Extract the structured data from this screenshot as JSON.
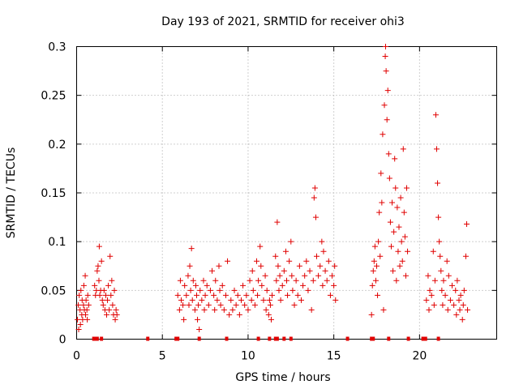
{
  "chart_data": {
    "type": "scatter",
    "title": "Day 193 of 2021, SRMTID for receiver ohi3",
    "xlabel": "GPS time / hours",
    "ylabel": "SRMTID / TECUs",
    "xlim": [
      0,
      24.5
    ],
    "ylim": [
      0,
      0.3
    ],
    "xticks": [
      0,
      5,
      10,
      15,
      20
    ],
    "xtick_labels": [
      "0",
      "5",
      "10",
      "15",
      "20"
    ],
    "yticks": [
      0,
      0.05,
      0.1,
      0.15,
      0.2,
      0.25,
      0.3
    ],
    "ytick_labels": [
      "0",
      "0.05",
      "0.1",
      "0.15",
      "0.2",
      "0.25",
      "0.3"
    ],
    "grid": true,
    "marker": "+",
    "color": "#e00000",
    "series": [
      {
        "name": "SRMTID",
        "points": [
          [
            0.05,
            0.02
          ],
          [
            0.1,
            0.035
          ],
          [
            0.12,
            0.01
          ],
          [
            0.15,
            0.045
          ],
          [
            0.2,
            0.03
          ],
          [
            0.22,
            0.015
          ],
          [
            0.25,
            0.05
          ],
          [
            0.3,
            0.025
          ],
          [
            0.32,
            0.04
          ],
          [
            0.35,
            0.02
          ],
          [
            0.4,
            0.035
          ],
          [
            0.42,
            0.055
          ],
          [
            0.45,
            0.03
          ],
          [
            0.5,
            0.065
          ],
          [
            0.52,
            0.025
          ],
          [
            0.55,
            0.04
          ],
          [
            0.6,
            0.03
          ],
          [
            0.62,
            0.02
          ],
          [
            0.65,
            0.045
          ],
          [
            0.7,
            0.035
          ],
          [
            1.05,
            0.055
          ],
          [
            1.1,
            0.045
          ],
          [
            1.15,
            0.05
          ],
          [
            1.2,
            0.07
          ],
          [
            1.25,
            0.075
          ],
          [
            1.3,
            0.06
          ],
          [
            1.32,
            0.095
          ],
          [
            1.35,
            0.045
          ],
          [
            1.4,
            0.05
          ],
          [
            1.45,
            0.08
          ],
          [
            1.5,
            0.04
          ],
          [
            1.55,
            0.035
          ],
          [
            1.6,
            0.05
          ],
          [
            1.65,
            0.03
          ],
          [
            1.7,
            0.045
          ],
          [
            1.75,
            0.025
          ],
          [
            1.8,
            0.04
          ],
          [
            1.85,
            0.055
          ],
          [
            1.9,
            0.03
          ],
          [
            1.95,
            0.085
          ],
          [
            2.0,
            0.045
          ],
          [
            2.05,
            0.06
          ],
          [
            2.1,
            0.035
          ],
          [
            2.15,
            0.025
          ],
          [
            2.2,
            0.05
          ],
          [
            2.25,
            0.02
          ],
          [
            2.3,
            0.03
          ],
          [
            2.35,
            0.025
          ],
          [
            5.9,
            0.045
          ],
          [
            6.0,
            0.03
          ],
          [
            6.05,
            0.06
          ],
          [
            6.1,
            0.04
          ],
          [
            6.2,
            0.035
          ],
          [
            6.25,
            0.02
          ],
          [
            6.3,
            0.055
          ],
          [
            6.4,
            0.045
          ],
          [
            6.5,
            0.065
          ],
          [
            6.55,
            0.035
          ],
          [
            6.6,
            0.075
          ],
          [
            6.65,
            0.05
          ],
          [
            6.7,
            0.093
          ],
          [
            6.75,
            0.04
          ],
          [
            6.8,
            0.06
          ],
          [
            6.9,
            0.03
          ],
          [
            6.95,
            0.055
          ],
          [
            7.0,
            0.045
          ],
          [
            7.05,
            0.02
          ],
          [
            7.1,
            0.035
          ],
          [
            7.15,
            0.01
          ],
          [
            7.2,
            0.05
          ],
          [
            7.3,
            0.04
          ],
          [
            7.4,
            0.06
          ],
          [
            7.45,
            0.03
          ],
          [
            7.5,
            0.045
          ],
          [
            7.6,
            0.055
          ],
          [
            7.7,
            0.035
          ],
          [
            7.8,
            0.05
          ],
          [
            7.9,
            0.07
          ],
          [
            8.0,
            0.045
          ],
          [
            8.05,
            0.03
          ],
          [
            8.1,
            0.06
          ],
          [
            8.2,
            0.04
          ],
          [
            8.3,
            0.075
          ],
          [
            8.35,
            0.05
          ],
          [
            8.4,
            0.035
          ],
          [
            8.5,
            0.055
          ],
          [
            8.6,
            0.03
          ],
          [
            8.7,
            0.045
          ],
          [
            8.8,
            0.08
          ],
          [
            8.9,
            0.025
          ],
          [
            9.0,
            0.04
          ],
          [
            9.1,
            0.03
          ],
          [
            9.2,
            0.05
          ],
          [
            9.3,
            0.035
          ],
          [
            9.4,
            0.045
          ],
          [
            9.5,
            0.025
          ],
          [
            9.6,
            0.04
          ],
          [
            9.7,
            0.055
          ],
          [
            9.8,
            0.035
          ],
          [
            9.9,
            0.045
          ],
          [
            10.0,
            0.03
          ],
          [
            10.1,
            0.06
          ],
          [
            10.2,
            0.04
          ],
          [
            10.25,
            0.07
          ],
          [
            10.3,
            0.05
          ],
          [
            10.4,
            0.035
          ],
          [
            10.5,
            0.08
          ],
          [
            10.55,
            0.045
          ],
          [
            10.6,
            0.06
          ],
          [
            10.7,
            0.095
          ],
          [
            10.75,
            0.075
          ],
          [
            10.8,
            0.055
          ],
          [
            10.9,
            0.04
          ],
          [
            11.0,
            0.065
          ],
          [
            11.05,
            0.03
          ],
          [
            11.1,
            0.05
          ],
          [
            11.2,
            0.025
          ],
          [
            11.25,
            0.04
          ],
          [
            11.3,
            0.035
          ],
          [
            11.35,
            0.02
          ],
          [
            11.4,
            0.045
          ],
          [
            11.6,
            0.085
          ],
          [
            11.65,
            0.06
          ],
          [
            11.7,
            0.12
          ],
          [
            11.75,
            0.075
          ],
          [
            11.8,
            0.05
          ],
          [
            11.85,
            0.065
          ],
          [
            11.9,
            0.04
          ],
          [
            12.0,
            0.055
          ],
          [
            12.1,
            0.07
          ],
          [
            12.2,
            0.09
          ],
          [
            12.25,
            0.06
          ],
          [
            12.3,
            0.045
          ],
          [
            12.4,
            0.08
          ],
          [
            12.5,
            0.1
          ],
          [
            12.55,
            0.065
          ],
          [
            12.6,
            0.05
          ],
          [
            12.7,
            0.035
          ],
          [
            12.8,
            0.06
          ],
          [
            12.9,
            0.045
          ],
          [
            13.0,
            0.075
          ],
          [
            13.1,
            0.04
          ],
          [
            13.2,
            0.055
          ],
          [
            13.3,
            0.065
          ],
          [
            13.4,
            0.08
          ],
          [
            13.5,
            0.05
          ],
          [
            13.6,
            0.07
          ],
          [
            13.7,
            0.03
          ],
          [
            13.8,
            0.06
          ],
          [
            13.85,
            0.145
          ],
          [
            13.9,
            0.155
          ],
          [
            13.95,
            0.125
          ],
          [
            14.0,
            0.085
          ],
          [
            14.1,
            0.065
          ],
          [
            14.2,
            0.075
          ],
          [
            14.3,
            0.1
          ],
          [
            14.35,
            0.055
          ],
          [
            14.4,
            0.09
          ],
          [
            14.5,
            0.07
          ],
          [
            14.6,
            0.06
          ],
          [
            14.7,
            0.08
          ],
          [
            14.8,
            0.045
          ],
          [
            14.9,
            0.065
          ],
          [
            15.0,
            0.055
          ],
          [
            15.05,
            0.075
          ],
          [
            15.1,
            0.04
          ],
          [
            17.2,
            0.025
          ],
          [
            17.25,
            0.055
          ],
          [
            17.3,
            0.07
          ],
          [
            17.35,
            0.08
          ],
          [
            17.4,
            0.095
          ],
          [
            17.45,
            0.06
          ],
          [
            17.5,
            0.075
          ],
          [
            17.55,
            0.045
          ],
          [
            17.6,
            0.1
          ],
          [
            17.65,
            0.13
          ],
          [
            17.7,
            0.085
          ],
          [
            17.75,
            0.17
          ],
          [
            17.8,
            0.14
          ],
          [
            17.85,
            0.21
          ],
          [
            17.9,
            0.03
          ],
          [
            17.95,
            0.24
          ],
          [
            18.0,
            0.29
          ],
          [
            18.02,
            0.3
          ],
          [
            18.05,
            0.275
          ],
          [
            18.1,
            0.225
          ],
          [
            18.15,
            0.255
          ],
          [
            18.2,
            0.19
          ],
          [
            18.25,
            0.165
          ],
          [
            18.3,
            0.12
          ],
          [
            18.35,
            0.095
          ],
          [
            18.4,
            0.14
          ],
          [
            18.45,
            0.07
          ],
          [
            18.5,
            0.11
          ],
          [
            18.55,
            0.185
          ],
          [
            18.6,
            0.155
          ],
          [
            18.65,
            0.06
          ],
          [
            18.7,
            0.135
          ],
          [
            18.75,
            0.09
          ],
          [
            18.8,
            0.115
          ],
          [
            18.85,
            0.075
          ],
          [
            18.9,
            0.145
          ],
          [
            18.95,
            0.1
          ],
          [
            19.0,
            0.08
          ],
          [
            19.05,
            0.195
          ],
          [
            19.1,
            0.13
          ],
          [
            19.15,
            0.105
          ],
          [
            19.2,
            0.065
          ],
          [
            19.25,
            0.155
          ],
          [
            19.3,
            0.09
          ],
          [
            20.4,
            0.04
          ],
          [
            20.5,
            0.065
          ],
          [
            20.55,
            0.03
          ],
          [
            20.6,
            0.05
          ],
          [
            20.7,
            0.045
          ],
          [
            20.8,
            0.09
          ],
          [
            20.85,
            0.035
          ],
          [
            20.9,
            0.06
          ],
          [
            20.95,
            0.23
          ],
          [
            21.0,
            0.195
          ],
          [
            21.05,
            0.16
          ],
          [
            21.1,
            0.125
          ],
          [
            21.15,
            0.1
          ],
          [
            21.2,
            0.085
          ],
          [
            21.25,
            0.07
          ],
          [
            21.3,
            0.05
          ],
          [
            21.35,
            0.035
          ],
          [
            21.4,
            0.06
          ],
          [
            21.5,
            0.045
          ],
          [
            21.6,
            0.08
          ],
          [
            21.65,
            0.03
          ],
          [
            21.7,
            0.065
          ],
          [
            21.8,
            0.04
          ],
          [
            21.9,
            0.055
          ],
          [
            22.0,
            0.035
          ],
          [
            22.1,
            0.05
          ],
          [
            22.15,
            0.025
          ],
          [
            22.2,
            0.06
          ],
          [
            22.3,
            0.04
          ],
          [
            22.35,
            0.03
          ],
          [
            22.4,
            0.045
          ],
          [
            22.5,
            0.02
          ],
          [
            22.55,
            0.035
          ],
          [
            22.6,
            0.05
          ],
          [
            22.7,
            0.085
          ],
          [
            22.75,
            0.118
          ],
          [
            22.8,
            0.03
          ]
        ]
      }
    ],
    "rug_x": [
      1.0,
      1.1,
      1.2,
      1.45,
      4.15,
      5.8,
      5.9,
      7.15,
      8.75,
      10.6,
      11.25,
      11.6,
      11.7,
      12.1,
      12.5,
      15.8,
      17.2,
      17.3,
      18.2,
      19.35,
      20.2,
      20.35,
      21.1
    ]
  }
}
